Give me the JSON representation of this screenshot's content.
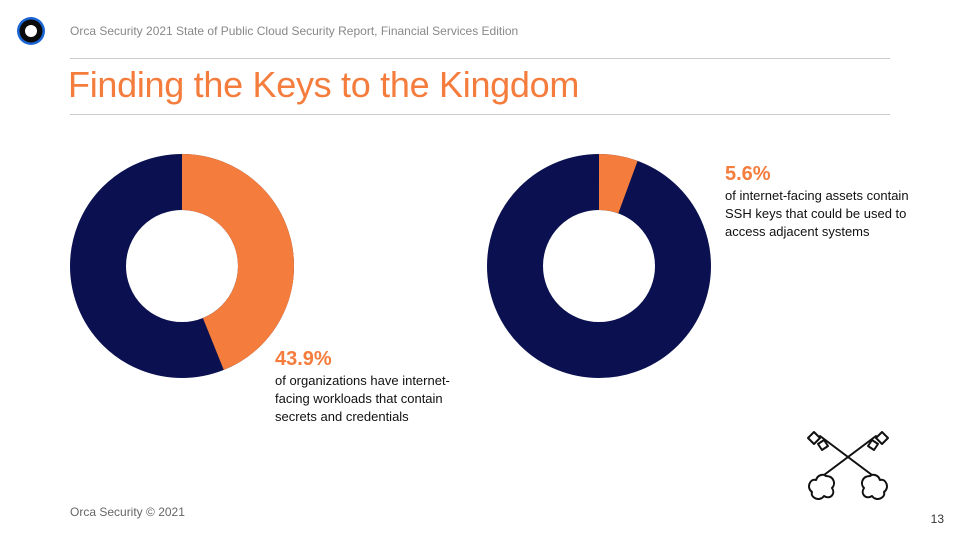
{
  "header": {
    "report_title": "Orca Security 2021 State of Public Cloud Security Report, Financial Services Edition"
  },
  "slide": {
    "title": "Finding the Keys to the Kingdom"
  },
  "stats": [
    {
      "value": 43.9,
      "percent_label": "43.9%",
      "description": "of organizations have internet-facing workloads that contain secrets and credentials"
    },
    {
      "value": 5.6,
      "percent_label": "5.6%",
      "description": "of internet-facing assets contain SSH keys that could be used to access adjacent systems"
    }
  ],
  "footer": {
    "copyright": "Orca Security © 2021",
    "page_number": "13"
  },
  "colors": {
    "accent": "#f47c3c",
    "navy": "#0b1150"
  },
  "icons": {
    "logo": "orca-logo-icon",
    "keys": "crossed-keys-icon"
  }
}
